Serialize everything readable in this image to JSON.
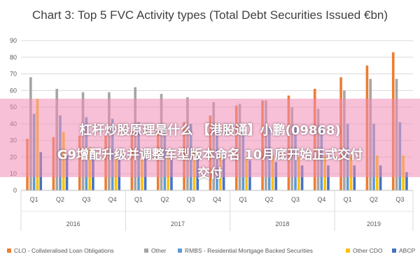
{
  "chart_data": {
    "type": "bar",
    "title": "Chart 3: Top 5 FVC Activity types (Total Debt Securities Issued €bn)",
    "ylim": [
      0,
      90
    ],
    "y_ticks": [
      "0",
      "10",
      "20",
      "30",
      "40",
      "50",
      "60",
      "70",
      "80",
      "90"
    ],
    "grid": true,
    "legend_position": "bottom",
    "categories": [
      "Q1",
      "Q2",
      "Q3",
      "Q4",
      "Q1",
      "Q2",
      "Q3",
      "Q4",
      "Q1",
      "Q2",
      "Q3",
      "Q4",
      "Q1",
      "Q2",
      "Q3"
    ],
    "year_groups": [
      {
        "label": "2016",
        "count": 4
      },
      {
        "label": "2017",
        "count": 4
      },
      {
        "label": "2018",
        "count": 4
      },
      {
        "label": "2019",
        "count": 3
      }
    ],
    "series": [
      {
        "name": "CLO - Collateralised Loan Obligations",
        "color": "#ED7D31",
        "values": [
          31,
          32,
          33,
          33,
          36,
          38,
          41,
          45,
          51,
          54,
          57,
          61,
          68,
          75,
          83
        ]
      },
      {
        "name": "Other",
        "color": "#A5A5A5",
        "values": [
          68,
          61,
          59,
          59,
          62,
          58,
          56,
          53,
          52,
          54,
          50,
          49,
          60,
          67,
          67
        ]
      },
      {
        "name": "RMBS - Residential Mortgage Backed Securities",
        "color": "#5B9BD5",
        "values": [
          46,
          45,
          44,
          43,
          41,
          40,
          40,
          39,
          38,
          38,
          38,
          38,
          40,
          40,
          41
        ]
      },
      {
        "name": "Other CDO",
        "color": "#FFC000",
        "values": [
          55,
          35,
          26,
          20,
          20,
          20,
          24,
          21,
          19,
          21,
          20,
          21,
          21,
          21,
          21
        ]
      },
      {
        "name": "ABCP",
        "color": "#4472C4",
        "values": [
          23,
          21,
          21,
          21,
          21,
          20,
          20,
          19,
          18,
          17,
          15,
          15,
          15,
          15,
          11
        ]
      }
    ]
  },
  "overlay": {
    "line1": "杠杆炒股原理是什么 【港股通】小鹏(09868)",
    "line2": "G9增配升级并调整车型版本命名 10月底开始正式交付",
    "line3": "交付"
  }
}
